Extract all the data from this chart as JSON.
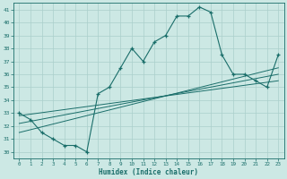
{
  "title": "",
  "xlabel": "Humidex (Indice chaleur)",
  "ylabel": "",
  "bg_color": "#cce8e4",
  "grid_color": "#aacfcb",
  "line_color": "#1a6e6a",
  "xlim": [
    -0.5,
    23.5
  ],
  "ylim": [
    29.5,
    41.5
  ],
  "xticks": [
    0,
    1,
    2,
    3,
    4,
    5,
    6,
    7,
    8,
    9,
    10,
    11,
    12,
    13,
    14,
    15,
    16,
    17,
    18,
    19,
    20,
    21,
    22,
    23
  ],
  "yticks": [
    30,
    31,
    32,
    33,
    34,
    35,
    36,
    37,
    38,
    39,
    40,
    41
  ],
  "main_x": [
    0,
    1,
    2,
    3,
    4,
    5,
    6,
    7,
    8,
    9,
    10,
    11,
    12,
    13,
    14,
    15,
    16,
    17,
    18,
    19,
    20,
    21,
    22,
    23
  ],
  "main_y": [
    33.0,
    32.5,
    31.5,
    31.0,
    30.5,
    30.5,
    30.0,
    34.5,
    35.0,
    36.5,
    38.0,
    37.0,
    38.5,
    39.0,
    40.5,
    40.5,
    41.2,
    40.8,
    37.5,
    36.0,
    36.0,
    35.5,
    35.0,
    37.5
  ],
  "line1_x": [
    0,
    23
  ],
  "line1_y": [
    31.5,
    36.5
  ],
  "line2_x": [
    0,
    23
  ],
  "line2_y": [
    32.2,
    36.0
  ],
  "line3_x": [
    0,
    23
  ],
  "line3_y": [
    32.8,
    35.5
  ]
}
